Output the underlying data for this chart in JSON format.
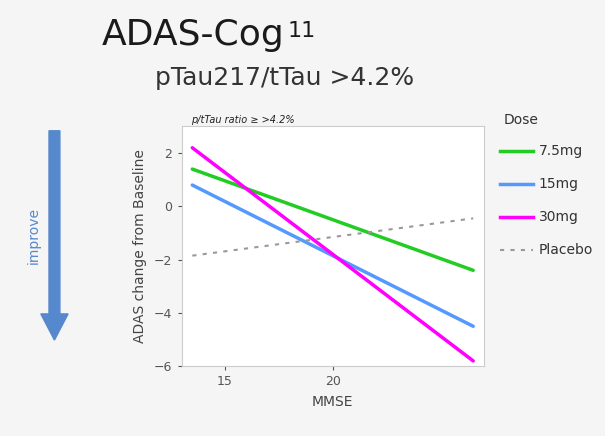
{
  "title_line1": "ADAS-Cog",
  "title_sub": "11",
  "title_line2": "pTau217/tTau >4.2%",
  "xlabel": "MMSE",
  "ylabel": "ADAS change from Baseline",
  "panel_label": "p/tTau ratio ≥ >4.2%",
  "xlim": [
    13,
    27
  ],
  "ylim": [
    -6,
    3
  ],
  "xticks": [
    15,
    20
  ],
  "yticks": [
    -6,
    -4,
    -2,
    0,
    2
  ],
  "lines": {
    "green": {
      "label": "7.5mg",
      "color": "#22cc22",
      "x": [
        13.5,
        26.5
      ],
      "y": [
        1.4,
        -2.4
      ]
    },
    "blue": {
      "label": "15mg",
      "color": "#5599ff",
      "x": [
        13.5,
        26.5
      ],
      "y": [
        0.8,
        -4.5
      ]
    },
    "magenta": {
      "label": "30mg",
      "color": "#ff00ff",
      "x": [
        13.5,
        26.5
      ],
      "y": [
        2.2,
        -5.8
      ]
    },
    "placebo": {
      "label": "Placebo",
      "color": "#999999",
      "x": [
        13.5,
        26.5
      ],
      "y": [
        -1.85,
        -0.45
      ]
    }
  },
  "plot_bg": "#ffffff",
  "panel_bg": "#b8b4a8",
  "fig_bg": "#f5f5f5",
  "arrow_color": "#5588cc",
  "arrow_text_color": "#5588cc",
  "improve_text": "improve",
  "title_fontsize": 26,
  "subtitle_fontsize": 18,
  "axis_label_fontsize": 10,
  "tick_fontsize": 9,
  "legend_title": "Dose",
  "legend_fontsize": 10,
  "legend_bg": "#f0f0f0"
}
